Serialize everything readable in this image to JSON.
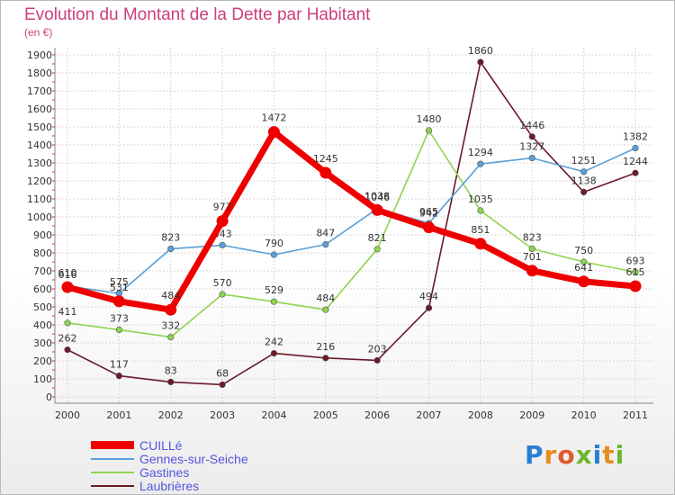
{
  "title": "Evolution du Montant de la Dette par Habitant",
  "subtitle": "(en €)",
  "logo": {
    "text": "Proxiti",
    "letters": [
      "P",
      "r",
      "o",
      "x",
      "i",
      "t",
      "i"
    ],
    "colors": [
      "#2a7fd4",
      "#e98b1f",
      "#e05a2b",
      "#6ab82c",
      "#2a7fd4",
      "#e98b1f",
      "#6ab82c"
    ]
  },
  "chart_data": {
    "type": "line",
    "x": [
      "2000",
      "2001",
      "2002",
      "2003",
      "2004",
      "2005",
      "2006",
      "2007",
      "2008",
      "2009",
      "2010",
      "2011"
    ],
    "ylim": [
      0,
      1900
    ],
    "yticks": [
      0,
      100,
      200,
      300,
      400,
      500,
      600,
      700,
      800,
      900,
      1000,
      1100,
      1200,
      1300,
      1400,
      1500,
      1600,
      1700,
      1800,
      1900
    ],
    "grid": true,
    "legend_position": "bottom-left",
    "series": [
      {
        "name": "Laubrières",
        "color": "#6b1a2a",
        "values": [
          262,
          117,
          83,
          68,
          242,
          216,
          203,
          494,
          1860,
          1446,
          1138,
          1244
        ]
      },
      {
        "name": "Gastines",
        "color": "#8fd44f",
        "values": [
          411,
          373,
          332,
          570,
          529,
          484,
          821,
          1480,
          1035,
          823,
          750,
          693
        ]
      },
      {
        "name": "Gennes-sur-Seiche",
        "color": "#5a9fd6",
        "values": [
          616,
          575,
          823,
          843,
          790,
          847,
          1046,
          965,
          1294,
          1327,
          1251,
          1382
        ]
      },
      {
        "name": "CUILLé",
        "color": "#ee0000",
        "values": [
          610,
          531,
          484,
          977,
          1472,
          1245,
          1038,
          942,
          851,
          701,
          641,
          615
        ]
      }
    ],
    "legend": [
      {
        "name": "CUILLé",
        "color": "#ee0000"
      },
      {
        "name": "Gennes-sur-Seiche",
        "color": "#5a9fd6"
      },
      {
        "name": "Gastines",
        "color": "#8fd44f"
      },
      {
        "name": "Laubrières",
        "color": "#6b1a2a"
      }
    ]
  }
}
